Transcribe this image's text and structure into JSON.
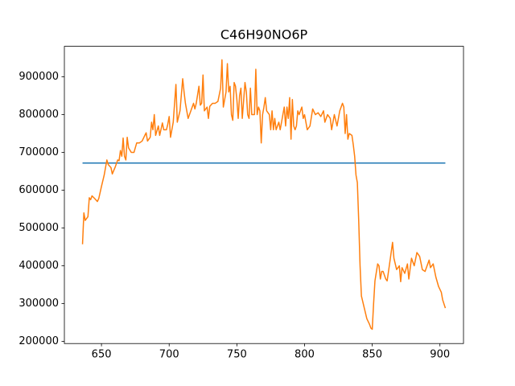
{
  "chart_data": {
    "type": "line",
    "title": "C46H90NO6P",
    "xlim": [
      622.6,
      917.4
    ],
    "ylim": [
      194250,
      980750
    ],
    "xticks": [
      650,
      700,
      750,
      800,
      850,
      900
    ],
    "yticks": [
      200000,
      300000,
      400000,
      500000,
      600000,
      700000,
      800000,
      900000
    ],
    "series": [
      {
        "color": "#1f77b4",
        "x": [
          636,
          904
        ],
        "values": [
          672000,
          672000
        ]
      },
      {
        "color": "#ff7f0e",
        "x": [
          636,
          637,
          638,
          640,
          641,
          642,
          643,
          645,
          647,
          648,
          650,
          652,
          654,
          655,
          657,
          658,
          660,
          662,
          663,
          664,
          665,
          666,
          667,
          668,
          669,
          670,
          672,
          674,
          676,
          678,
          680,
          682,
          683,
          684,
          686,
          687,
          688,
          689,
          690,
          692,
          693,
          695,
          696,
          698,
          699,
          700,
          701,
          703,
          705,
          706,
          708,
          710,
          711,
          712,
          714,
          716,
          718,
          719,
          720,
          722,
          723,
          724,
          725,
          726,
          728,
          729,
          730,
          732,
          734,
          736,
          738,
          739,
          740,
          742,
          743,
          744,
          745,
          746,
          747,
          748,
          749,
          750,
          751,
          752,
          753,
          754,
          756,
          757,
          758,
          759,
          760,
          761,
          763,
          764,
          765,
          766,
          767,
          768,
          769,
          770,
          771,
          772,
          774,
          775,
          776,
          777,
          778,
          779,
          780,
          781,
          782,
          784,
          785,
          786,
          787,
          788,
          789,
          790,
          791,
          792,
          793,
          794,
          795,
          796,
          798,
          799,
          800,
          802,
          804,
          806,
          808,
          810,
          812,
          814,
          815,
          817,
          819,
          820,
          822,
          824,
          826,
          828,
          829,
          830,
          831,
          832,
          833,
          835,
          836,
          837,
          838,
          839,
          840,
          841,
          842,
          844,
          846,
          848,
          849,
          850,
          851,
          852,
          854,
          855,
          856,
          857,
          858,
          860,
          861,
          863,
          865,
          866,
          868,
          870,
          871,
          872,
          874,
          876,
          877,
          879,
          881,
          883,
          885,
          887,
          889,
          892,
          893,
          895,
          897,
          899,
          901,
          902,
          904
        ],
        "values": [
          457000,
          540000,
          520000,
          530000,
          580000,
          575000,
          585000,
          578000,
          570000,
          578000,
          610000,
          640000,
          680000,
          668000,
          660000,
          643000,
          660000,
          680000,
          678000,
          705000,
          690000,
          738000,
          690000,
          680000,
          740000,
          712000,
          700000,
          700000,
          725000,
          725000,
          730000,
          745000,
          752000,
          730000,
          740000,
          780000,
          760000,
          800000,
          745000,
          770000,
          745000,
          778000,
          760000,
          760000,
          775000,
          795000,
          740000,
          780000,
          880000,
          780000,
          810000,
          895000,
          860000,
          830000,
          790000,
          810000,
          830000,
          815000,
          830000,
          875000,
          825000,
          830000,
          905000,
          810000,
          820000,
          790000,
          822000,
          830000,
          830000,
          835000,
          870000,
          945000,
          820000,
          860000,
          935000,
          860000,
          875000,
          800000,
          785000,
          885000,
          875000,
          840000,
          790000,
          850000,
          870000,
          790000,
          885000,
          860000,
          800000,
          790000,
          870000,
          800000,
          800000,
          920000,
          800000,
          820000,
          810000,
          725000,
          800000,
          820000,
          845000,
          810000,
          800000,
          760000,
          810000,
          760000,
          790000,
          760000,
          770000,
          780000,
          760000,
          800000,
          820000,
          770000,
          820000,
          790000,
          845000,
          735000,
          840000,
          770000,
          760000,
          770000,
          810000,
          800000,
          820000,
          790000,
          800000,
          760000,
          770000,
          815000,
          800000,
          805000,
          795000,
          810000,
          780000,
          800000,
          790000,
          760000,
          800000,
          770000,
          810000,
          830000,
          820000,
          750000,
          800000,
          735000,
          750000,
          745000,
          720000,
          690000,
          640000,
          620000,
          520000,
          400000,
          320000,
          290000,
          260000,
          245000,
          235000,
          232000,
          300000,
          360000,
          405000,
          400000,
          365000,
          385000,
          385000,
          365000,
          360000,
          410000,
          462000,
          420000,
          390000,
          400000,
          358000,
          395000,
          380000,
          405000,
          365000,
          420000,
          400000,
          435000,
          425000,
          390000,
          385000,
          415000,
          395000,
          405000,
          370000,
          345000,
          330000,
          310000,
          288000
        ]
      }
    ]
  }
}
